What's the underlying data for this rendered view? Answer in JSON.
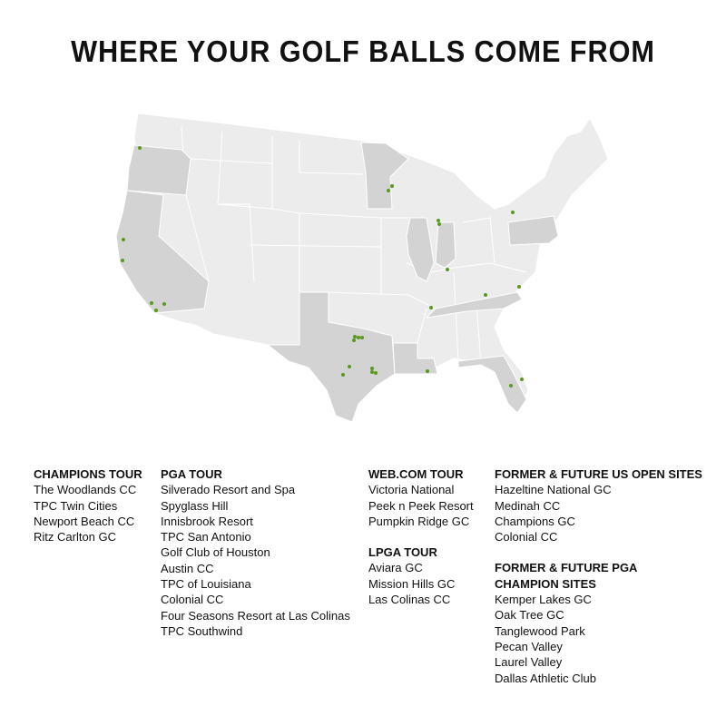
{
  "title": "WHERE YOUR GOLF BALLS COME FROM",
  "colors": {
    "land": "#ececec",
    "highlighted_state": "#d3d3d3",
    "border": "#ffffff",
    "dot": "#5a9a1a"
  },
  "map": {
    "highlighted_states": [
      "Oregon",
      "California",
      "Texas",
      "Louisiana",
      "Minnesota",
      "Illinois",
      "Indiana",
      "Pennsylvania",
      "Tennessee",
      "Florida"
    ]
  },
  "sections": {
    "champions": {
      "heading": "CHAMPIONS TOUR",
      "items": [
        "The Woodlands CC",
        "TPC Twin Cities",
        "Newport Beach CC",
        "Ritz Carlton GC"
      ]
    },
    "pga": {
      "heading": "PGA TOUR",
      "items": [
        "Silverado Resort and Spa",
        "Spyglass Hill",
        "Innisbrook Resort",
        "TPC San Antonio",
        "Golf Club of Houston",
        "Austin CC",
        "TPC of Louisiana",
        "Colonial CC",
        "Four Seasons Resort at Las Colinas",
        "TPC Southwind"
      ]
    },
    "webcom": {
      "heading": "WEB.COM TOUR",
      "items": [
        "Victoria National",
        "Peek n Peek Resort",
        "Pumpkin Ridge GC"
      ]
    },
    "lpga": {
      "heading": "LPGA TOUR",
      "items": [
        "Aviara GC",
        "Mission Hills GC",
        "Las Colinas CC"
      ]
    },
    "usopen": {
      "heading": "FORMER & FUTURE US OPEN SITES",
      "items": [
        "Hazeltine National GC",
        "Medinah CC",
        "Champions GC",
        "Colonial CC"
      ]
    },
    "pgachamp": {
      "heading_line1": "FORMER & FUTURE PGA",
      "heading_line2": "CHAMPION SITES",
      "items": [
        "Kemper Lakes GC",
        "Oak Tree GC",
        "Tanglewood Park",
        "Pecan Valley",
        "Laurel Valley",
        "Dallas Athletic Club"
      ]
    }
  }
}
